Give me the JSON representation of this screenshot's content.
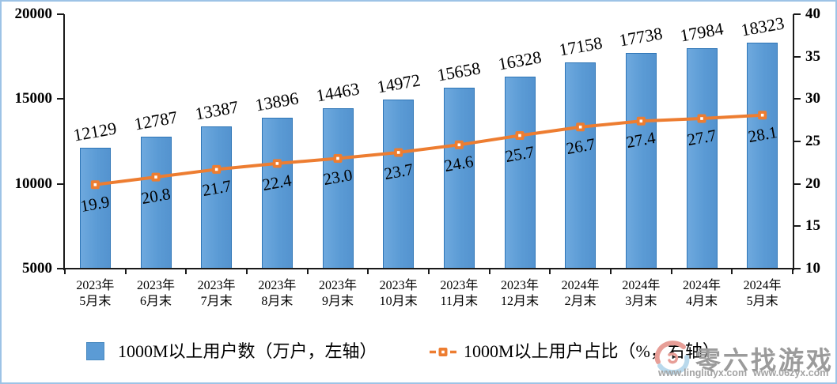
{
  "chart_data": {
    "type": "bar+line",
    "categories": [
      [
        "2023年",
        "5月末"
      ],
      [
        "2023年",
        "6月末"
      ],
      [
        "2023年",
        "7月末"
      ],
      [
        "2023年",
        "8月末"
      ],
      [
        "2023年",
        "9月末"
      ],
      [
        "2023年",
        "10月末"
      ],
      [
        "2023年",
        "11月末"
      ],
      [
        "2023年",
        "12月末"
      ],
      [
        "2024年",
        "2月末"
      ],
      [
        "2024年",
        "3月末"
      ],
      [
        "2024年",
        "4月末"
      ],
      [
        "2024年",
        "5月末"
      ]
    ],
    "series": [
      {
        "name": "1000M以上用户数（万户，左轴）",
        "type": "bar",
        "axis": "left",
        "values": [
          12129,
          12787,
          13387,
          13896,
          14463,
          14972,
          15658,
          16328,
          17158,
          17738,
          17984,
          18323
        ],
        "color": "#5b9bd5",
        "border_color": "#2e75b6"
      },
      {
        "name": "1000M以上用户占比（%，右轴）",
        "type": "line",
        "axis": "right",
        "values": [
          19.9,
          20.8,
          21.7,
          22.4,
          23.0,
          23.7,
          24.6,
          25.7,
          26.7,
          27.4,
          27.7,
          28.1
        ],
        "color": "#ed7d31"
      }
    ],
    "left_axis": {
      "min": 5000,
      "max": 20000,
      "ticks": [
        5000,
        10000,
        15000,
        20000
      ]
    },
    "right_axis": {
      "min": 10,
      "max": 40,
      "ticks": [
        10,
        15,
        20,
        25,
        30,
        35,
        40
      ]
    },
    "grid": false,
    "legend_position": "bottom"
  },
  "watermark": {
    "title": "零六找游戏",
    "url1": "www.lingliuyx.com",
    "url2": "www.06zyx.com"
  },
  "colors": {
    "bar_fill": "#5b9bd5",
    "bar_border": "#2e75b6",
    "line": "#ed7d31",
    "frame_border": "#9dc3e6",
    "axis": "#1a1a1a",
    "watermark_text": "#9b9b9b",
    "logo_pink": "#e79e97",
    "logo_blue": "#b9d9ec"
  }
}
